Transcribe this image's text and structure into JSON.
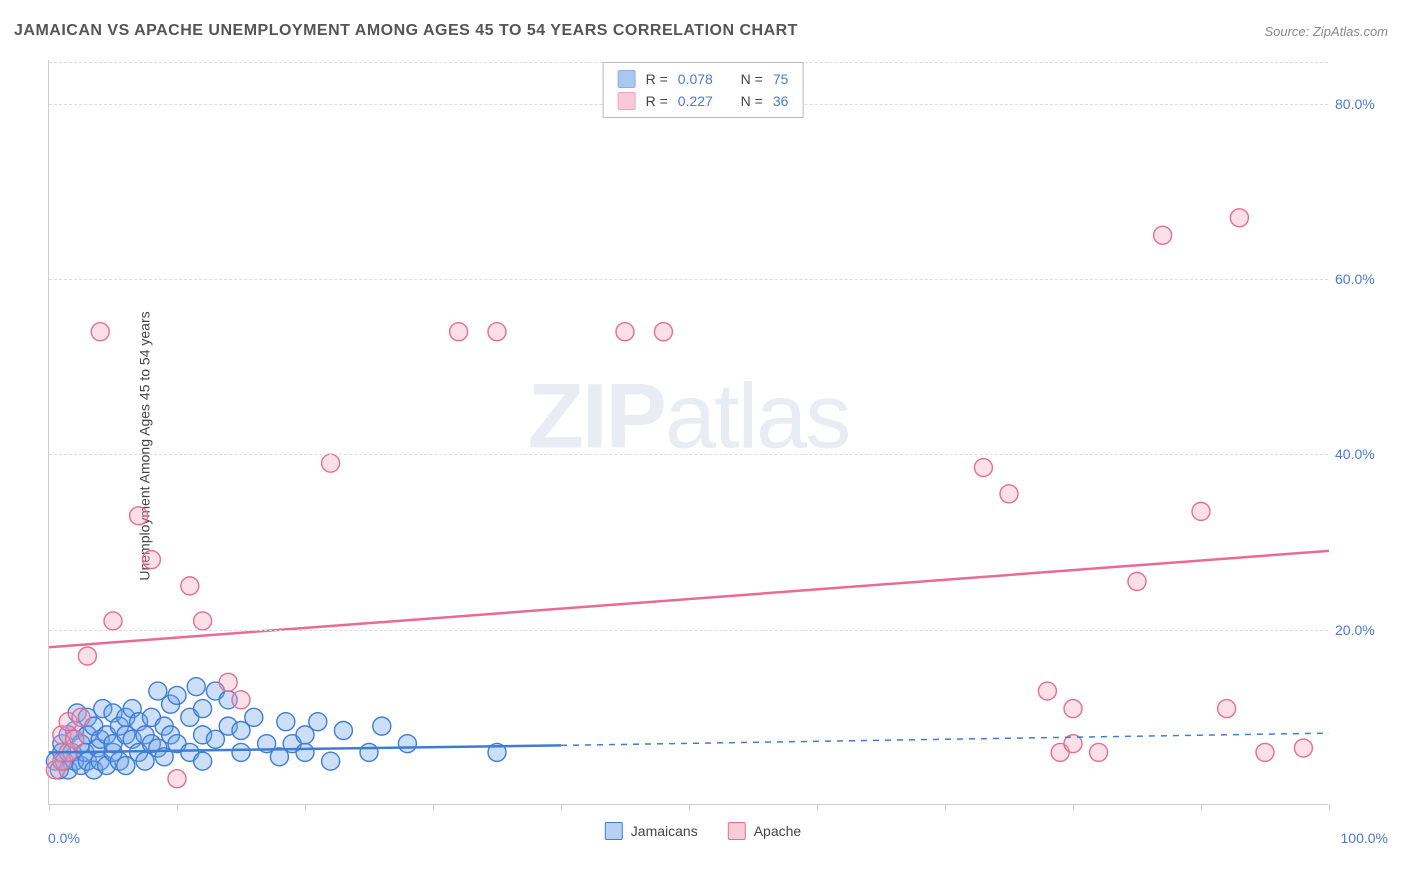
{
  "title": "JAMAICAN VS APACHE UNEMPLOYMENT AMONG AGES 45 TO 54 YEARS CORRELATION CHART",
  "source": "Source: ZipAtlas.com",
  "y_axis_label": "Unemployment Among Ages 45 to 54 years",
  "watermark": {
    "part1": "ZIP",
    "part2": "atlas"
  },
  "chart": {
    "type": "scatter",
    "xlim": [
      0,
      100
    ],
    "ylim": [
      0,
      85
    ],
    "x_tick_positions": [
      0,
      10,
      20,
      30,
      40,
      50,
      60,
      70,
      80,
      90,
      100
    ],
    "y_ticks": [
      20,
      40,
      60,
      80
    ],
    "y_tick_labels": [
      "20.0%",
      "40.0%",
      "60.0%",
      "80.0%"
    ],
    "x_min_label": "0.0%",
    "x_max_label": "100.0%",
    "background_color": "#ffffff",
    "grid_color": "#dddddd",
    "axis_color": "#cccccc",
    "tick_label_color": "#4a7bd0",
    "marker_radius": 9,
    "marker_fill_opacity": 0.35,
    "marker_stroke_width": 1.4,
    "trend_line_width": 2.5,
    "series": [
      {
        "name": "Jamaicans",
        "color_fill": "#6fa3e8",
        "color_stroke": "#3d7dd6",
        "R": "0.078",
        "N": "75",
        "trend": {
          "x0": 0,
          "y0": 6.0,
          "x_solid_end": 40,
          "y_solid_end": 6.8,
          "x1": 100,
          "y1": 8.2,
          "color": "#3d7dd6"
        },
        "points": [
          [
            0.5,
            5
          ],
          [
            0.8,
            4
          ],
          [
            1,
            6
          ],
          [
            1,
            7
          ],
          [
            1.2,
            5
          ],
          [
            1.5,
            8
          ],
          [
            1.5,
            4
          ],
          [
            1.8,
            6
          ],
          [
            2,
            5
          ],
          [
            2,
            8.5
          ],
          [
            2.2,
            10.5
          ],
          [
            2.5,
            7
          ],
          [
            2.5,
            4.5
          ],
          [
            2.8,
            6
          ],
          [
            3,
            5
          ],
          [
            3,
            8
          ],
          [
            3,
            10
          ],
          [
            3.5,
            9
          ],
          [
            3.5,
            4
          ],
          [
            3.8,
            6.5
          ],
          [
            4,
            7.5
          ],
          [
            4,
            5
          ],
          [
            4.2,
            11
          ],
          [
            4.5,
            8
          ],
          [
            4.5,
            4.5
          ],
          [
            5,
            10.5
          ],
          [
            5,
            6
          ],
          [
            5,
            7
          ],
          [
            5.5,
            9
          ],
          [
            5.5,
            5
          ],
          [
            6,
            8
          ],
          [
            6,
            10
          ],
          [
            6,
            4.5
          ],
          [
            6.5,
            7.5
          ],
          [
            6.5,
            11
          ],
          [
            7,
            6
          ],
          [
            7,
            9.5
          ],
          [
            7.5,
            8
          ],
          [
            7.5,
            5
          ],
          [
            8,
            7
          ],
          [
            8,
            10
          ],
          [
            8.5,
            13
          ],
          [
            8.5,
            6.5
          ],
          [
            9,
            9
          ],
          [
            9,
            5.5
          ],
          [
            9.5,
            8
          ],
          [
            9.5,
            11.5
          ],
          [
            10,
            7
          ],
          [
            10,
            12.5
          ],
          [
            11,
            10
          ],
          [
            11,
            6
          ],
          [
            11.5,
            13.5
          ],
          [
            12,
            8
          ],
          [
            12,
            11
          ],
          [
            12,
            5
          ],
          [
            13,
            13
          ],
          [
            13,
            7.5
          ],
          [
            14,
            9
          ],
          [
            14,
            12
          ],
          [
            15,
            6
          ],
          [
            15,
            8.5
          ],
          [
            16,
            10
          ],
          [
            17,
            7
          ],
          [
            18,
            5.5
          ],
          [
            18.5,
            9.5
          ],
          [
            19,
            7
          ],
          [
            20,
            8
          ],
          [
            20,
            6
          ],
          [
            21,
            9.5
          ],
          [
            22,
            5
          ],
          [
            23,
            8.5
          ],
          [
            25,
            6
          ],
          [
            26,
            9
          ],
          [
            28,
            7
          ],
          [
            35,
            6
          ]
        ]
      },
      {
        "name": "Apache",
        "color_fill": "#f4a6bd",
        "color_stroke": "#e96b94",
        "R": "0.227",
        "N": "36",
        "trend": {
          "x0": 0,
          "y0": 18.0,
          "x_solid_end": 100,
          "y_solid_end": 29.0,
          "x1": 100,
          "y1": 29.0,
          "color": "#e96b94"
        },
        "points": [
          [
            0.5,
            4
          ],
          [
            1,
            8
          ],
          [
            1,
            5
          ],
          [
            1.5,
            9.5
          ],
          [
            1.5,
            6
          ],
          [
            2,
            7.5
          ],
          [
            2.5,
            10
          ],
          [
            3,
            17
          ],
          [
            4,
            54
          ],
          [
            5,
            21
          ],
          [
            7,
            33
          ],
          [
            8,
            28
          ],
          [
            10,
            3
          ],
          [
            11,
            25
          ],
          [
            12,
            21
          ],
          [
            14,
            14
          ],
          [
            15,
            12
          ],
          [
            22,
            39
          ],
          [
            32,
            54
          ],
          [
            35,
            54
          ],
          [
            45,
            54
          ],
          [
            48,
            54
          ],
          [
            73,
            38.5
          ],
          [
            75,
            35.5
          ],
          [
            78,
            13
          ],
          [
            79,
            6
          ],
          [
            80,
            7
          ],
          [
            80,
            11
          ],
          [
            82,
            6
          ],
          [
            85,
            25.5
          ],
          [
            87,
            65
          ],
          [
            90,
            33.5
          ],
          [
            92,
            11
          ],
          [
            93,
            67
          ],
          [
            95,
            6
          ],
          [
            98,
            6.5
          ]
        ]
      }
    ],
    "legend_series": [
      {
        "label": "Jamaicans",
        "fill": "#b8d1f2",
        "stroke": "#3d7dd6"
      },
      {
        "label": "Apache",
        "fill": "#f7cdd9",
        "stroke": "#e96b94"
      }
    ]
  }
}
